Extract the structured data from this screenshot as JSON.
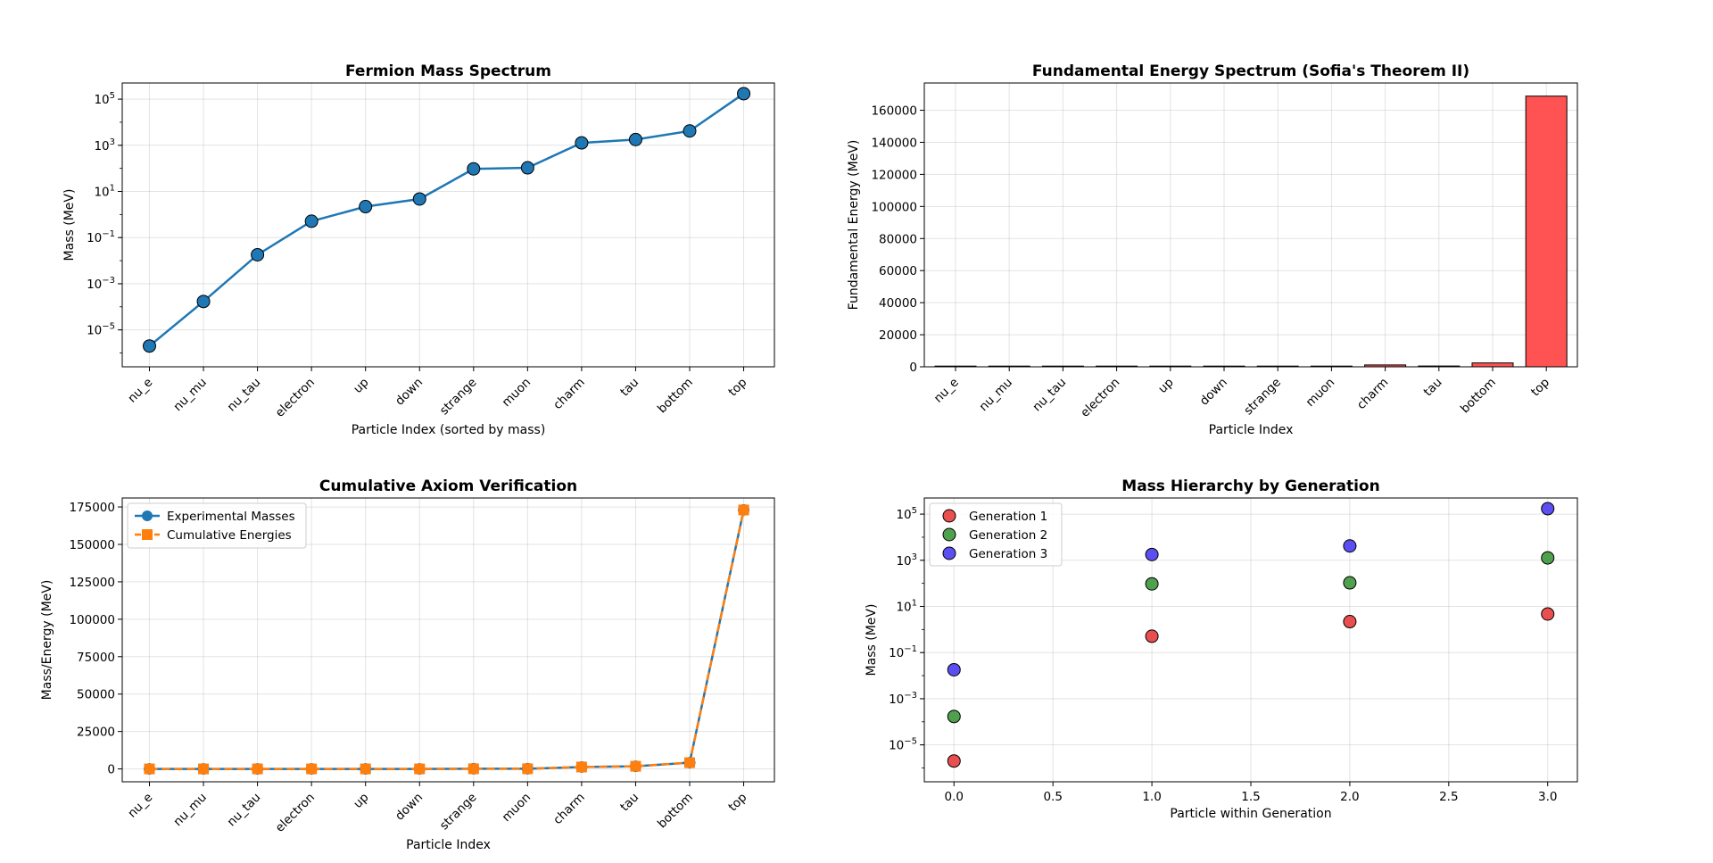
{
  "particles": [
    "nu_e",
    "nu_mu",
    "nu_tau",
    "electron",
    "up",
    "down",
    "strange",
    "muon",
    "charm",
    "tau",
    "bottom",
    "top"
  ],
  "chart_data": [
    {
      "type": "line",
      "title": "Fermion Mass Spectrum",
      "xlabel": "Particle Index (sorted by mass)",
      "ylabel": "Mass (MeV)",
      "yscale": "log",
      "ylim_exp": [
        -6.6,
        5.7
      ],
      "ytick_exponents": [
        -5,
        -3,
        -1,
        1,
        3,
        5
      ],
      "grid": true,
      "series": [
        {
          "values": [
            2e-06,
            0.00017,
            0.018,
            0.511,
            2.2,
            4.7,
            95,
            105.66,
            1275,
            1776.86,
            4180,
            173000
          ],
          "color": "#1f77b4"
        }
      ]
    },
    {
      "type": "bar",
      "title": "Fundamental Energy Spectrum (Sofia's Theorem II)",
      "xlabel": "Particle Index",
      "ylabel": "Fundamental Energy (MeV)",
      "ylim": [
        0,
        177000
      ],
      "yticks": [
        0,
        20000,
        40000,
        60000,
        80000,
        100000,
        120000,
        140000,
        160000
      ],
      "grid": true,
      "values": [
        2e-06,
        0.000168,
        0.01783,
        0.493,
        1.689,
        2.5,
        90.3,
        10.66,
        1169.34,
        501.86,
        2403.14,
        168820
      ],
      "color": "#ff5252"
    },
    {
      "type": "line",
      "title": "Cumulative Axiom Verification",
      "xlabel": "Particle Index",
      "ylabel": "Mass/Energy (MeV)",
      "ylim": [
        -8600,
        181000
      ],
      "yticks": [
        0,
        25000,
        50000,
        75000,
        100000,
        125000,
        150000,
        175000
      ],
      "grid": true,
      "legend_position": "upper-left",
      "series": [
        {
          "name": "Experimental Masses",
          "values": [
            2e-06,
            0.00017,
            0.018,
            0.511,
            2.2,
            4.7,
            95,
            105.66,
            1275,
            1776.86,
            4180,
            173000
          ],
          "color": "#1f77b4",
          "marker": "circle"
        },
        {
          "name": "Cumulative Energies",
          "values": [
            2e-06,
            0.00017,
            0.018,
            0.511,
            2.2,
            4.7,
            95,
            105.66,
            1275,
            1776.86,
            4180,
            173000
          ],
          "color": "#ff7f0e",
          "marker": "square",
          "dashed": true
        }
      ]
    },
    {
      "type": "scatter",
      "title": "Mass Hierarchy by Generation",
      "xlabel": "Particle within Generation",
      "ylabel": "Mass (MeV)",
      "yscale": "log",
      "xlim": [
        -0.15,
        3.15
      ],
      "xticks": [
        0,
        0.5,
        1,
        1.5,
        2,
        2.5,
        3
      ],
      "xtick_labels": [
        "0.0",
        "0.5",
        "1.0",
        "1.5",
        "2.0",
        "2.5",
        "3.0"
      ],
      "ylim_exp": [
        -6.6,
        5.7
      ],
      "ytick_exponents": [
        -5,
        -3,
        -1,
        1,
        3,
        5
      ],
      "grid": true,
      "legend_position": "upper-left",
      "series": [
        {
          "name": "Generation 1",
          "color": "#e83c3c",
          "points": [
            [
              0,
              2e-06
            ],
            [
              1,
              0.511
            ],
            [
              2,
              2.2
            ],
            [
              3,
              4.7
            ]
          ]
        },
        {
          "name": "Generation 2",
          "color": "#3c963c",
          "points": [
            [
              0,
              0.00017
            ],
            [
              1,
              95
            ],
            [
              2,
              105.66
            ],
            [
              3,
              1275
            ]
          ]
        },
        {
          "name": "Generation 3",
          "color": "#4a3cf0",
          "points": [
            [
              0,
              0.018
            ],
            [
              1,
              1776.86
            ],
            [
              2,
              4180
            ],
            [
              3,
              173000
            ]
          ]
        }
      ]
    }
  ]
}
